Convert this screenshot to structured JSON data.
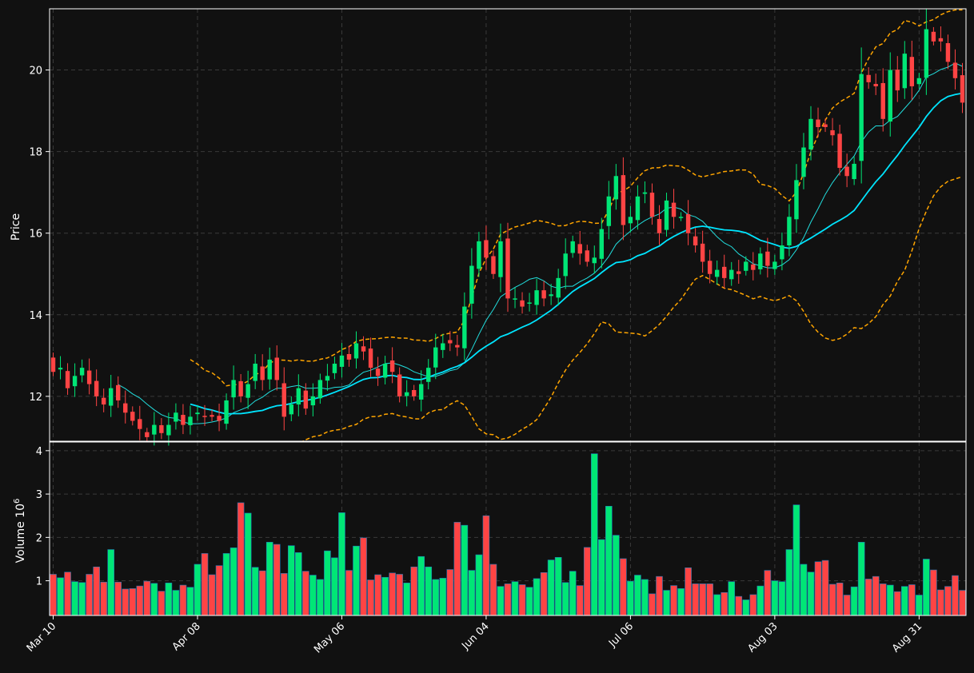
{
  "colors": {
    "background": "#111111",
    "panel_border": "#ffffff",
    "grid": "#3a3a3a",
    "up": "#00e676",
    "down": "#ff4444",
    "sma_short": "#22dddd",
    "sma_long": "#00e5ff",
    "bollinger": "#ffa500"
  },
  "chart_data": {
    "type": "candlestick",
    "title": "",
    "grid": true,
    "x_tick_labels": [
      "Mar 10",
      "Apr 08",
      "May 06",
      "Jun 04",
      "Jul 06",
      "Aug 03",
      "Aug 31"
    ],
    "x_tick_index": [
      0,
      20,
      40,
      60,
      80,
      100,
      120
    ],
    "price_panel": {
      "ylabel": "Price",
      "ylim": [
        10.9,
        21.5
      ],
      "yticks": [
        12,
        14,
        16,
        18,
        20
      ],
      "ytick_labels": [
        "12",
        "14",
        "16",
        "18",
        "20"
      ]
    },
    "volume_panel": {
      "ylabel": "Volume  10",
      "ylabel_exponent": "6",
      "ylim": [
        0.2,
        4.2
      ],
      "yticks": [
        1,
        2,
        3,
        4
      ],
      "ytick_labels": [
        "1",
        "2",
        "3",
        "4"
      ]
    },
    "close": [
      12.6,
      12.7,
      12.2,
      12.5,
      12.7,
      12.3,
      12.0,
      11.8,
      12.2,
      11.9,
      11.6,
      11.4,
      11.2,
      11.0,
      11.3,
      11.1,
      11.3,
      11.6,
      11.3,
      11.5,
      11.6,
      11.5,
      11.5,
      11.4,
      11.9,
      12.4,
      12.0,
      12.3,
      12.8,
      12.4,
      12.9,
      12.4,
      11.5,
      11.8,
      12.2,
      11.7,
      12.0,
      12.4,
      12.5,
      12.8,
      13.0,
      12.9,
      13.3,
      13.1,
      12.7,
      12.5,
      12.8,
      12.6,
      12.0,
      12.1,
      12.0,
      12.3,
      12.7,
      13.2,
      13.3,
      13.3,
      13.2,
      14.2,
      15.2,
      15.8,
      15.4,
      15.0,
      15.8,
      14.4,
      14.4,
      14.2,
      14.3,
      14.6,
      14.4,
      14.5,
      14.9,
      15.5,
      15.8,
      15.5,
      15.3,
      15.4,
      16.1,
      16.9,
      17.4,
      16.2,
      16.4,
      16.9,
      17.0,
      16.4,
      16.0,
      16.8,
      16.4,
      16.4,
      16.0,
      15.7,
      15.3,
      15.0,
      15.1,
      14.9,
      15.1,
      15.0,
      15.3,
      15.1,
      15.5,
      15.2,
      15.3,
      15.7,
      16.4,
      17.3,
      18.1,
      18.8,
      18.6,
      18.6,
      18.4,
      17.6,
      17.4,
      17.7,
      19.9,
      19.7,
      19.6,
      18.8,
      20.0,
      19.5,
      20.4,
      19.6,
      19.8,
      21.0,
      20.7,
      20.7,
      20.2,
      19.8,
      19.2
    ],
    "volume_millions": [
      1.15,
      1.07,
      1.2,
      0.98,
      0.96,
      1.15,
      1.32,
      0.97,
      1.72,
      0.97,
      0.81,
      0.82,
      0.88,
      0.99,
      0.94,
      0.76,
      0.95,
      0.78,
      0.9,
      0.85,
      1.38,
      1.63,
      1.14,
      1.35,
      1.63,
      1.76,
      2.8,
      2.56,
      1.31,
      1.23,
      1.89,
      1.84,
      1.17,
      1.81,
      1.65,
      1.22,
      1.13,
      1.03,
      1.69,
      1.53,
      2.57,
      1.24,
      1.8,
      1.99,
      1.02,
      1.14,
      1.08,
      1.18,
      1.15,
      0.95,
      1.32,
      1.56,
      1.32,
      1.03,
      1.06,
      1.26,
      2.35,
      2.28,
      1.24,
      1.6,
      2.5,
      1.38,
      0.87,
      0.93,
      0.98,
      0.91,
      0.85,
      1.05,
      1.19,
      1.48,
      1.54,
      0.96,
      1.22,
      0.89,
      1.77,
      3.93,
      1.95,
      2.72,
      2.05,
      1.51,
      0.99,
      1.13,
      1.03,
      0.7,
      1.1,
      0.78,
      0.89,
      0.82,
      1.3,
      0.93,
      0.93,
      0.93,
      0.68,
      0.73,
      0.98,
      0.64,
      0.56,
      0.68,
      0.88,
      1.24,
      1.0,
      0.98,
      1.72,
      2.75,
      1.38,
      1.2,
      1.44,
      1.47,
      0.92,
      0.95,
      0.67,
      0.86,
      1.89,
      1.04,
      1.1,
      0.93,
      0.9,
      0.75,
      0.87,
      0.91,
      0.67,
      1.5,
      1.25,
      0.79,
      0.87,
      1.12,
      0.78
    ]
  }
}
